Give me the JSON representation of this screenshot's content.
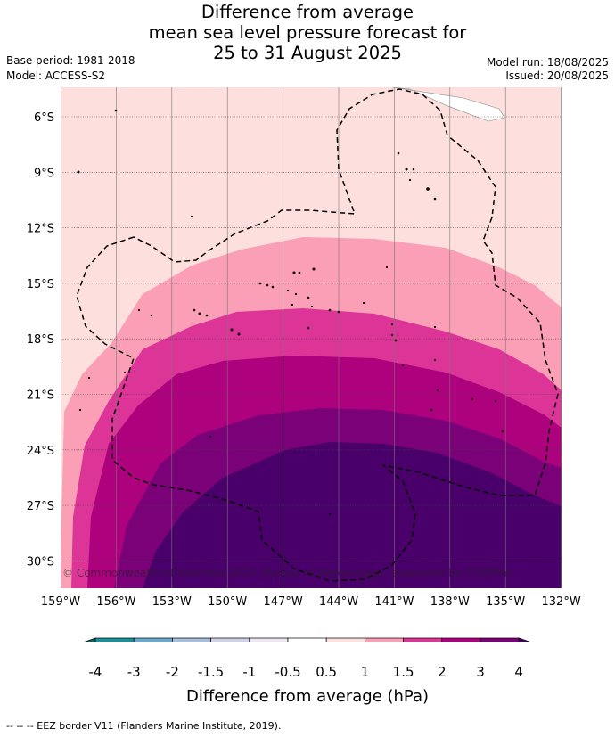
{
  "title": {
    "line1": "Difference from average",
    "line2": "mean sea level pressure forecast for",
    "line3": "25 to 31 August 2025"
  },
  "meta": {
    "base_period": "Base period: 1981-2018",
    "model": "Model: ACCESS-S2",
    "model_run": "Model run: 18/08/2025",
    "issued": "Issued: 20/08/2025"
  },
  "map": {
    "lat_labels": [
      "6°S",
      "9°S",
      "12°S",
      "15°S",
      "18°S",
      "21°S",
      "24°S",
      "27°S",
      "30°S"
    ],
    "lon_labels": [
      "159°W",
      "156°W",
      "153°W",
      "150°W",
      "147°W",
      "144°W",
      "141°W",
      "138°W",
      "135°W",
      "132°W"
    ],
    "copyright": "© Commonwealth of Australia 2025, Bureau of Meteorology, supported by COSPPac",
    "fill_colors": {
      "0.5-1": "#fde0dd",
      "1-1.5": "#fa9fb5",
      "1.5-2": "#dd3497",
      "2-3": "#ae017e",
      "3-4": "#7a0177",
      "4+": "#49006a"
    }
  },
  "colorbar": {
    "ticks": [
      "-4",
      "-3",
      "-2",
      "-1.5",
      "-1",
      "-0.5",
      "0.5",
      "1",
      "1.5",
      "2",
      "3",
      "4"
    ],
    "colors": [
      "#016c59",
      "#1c9099",
      "#67a9cf",
      "#a6bddb",
      "#d0d1e6",
      "#ece7f2",
      "#ffffff",
      "#fde0dd",
      "#fa9fb5",
      "#dd3497",
      "#ae017e",
      "#7a0177",
      "#49006a"
    ],
    "title": "Difference from average (hPa)"
  },
  "footer": "--  --  -- EEZ border V11 (Flanders Marine Institute, 2019)."
}
